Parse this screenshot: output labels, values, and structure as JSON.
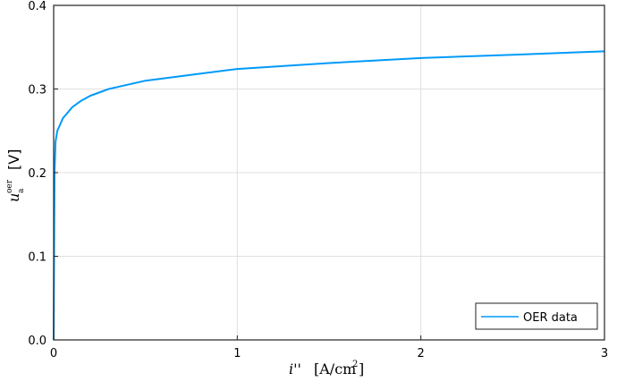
{
  "chart_data": {
    "type": "line",
    "title": "",
    "xlabel": "i'' [A/cm²]",
    "ylabel": "u_a^oer [V]",
    "xlim": [
      0,
      3
    ],
    "ylim": [
      0,
      0.4
    ],
    "xticks": [
      "0",
      "1",
      "2",
      "3"
    ],
    "yticks": [
      "0.0",
      "0.1",
      "0.2",
      "0.3",
      "0.4"
    ],
    "grid": true,
    "legend_position": "bottom-right",
    "series": [
      {
        "name": "OER data",
        "color": "#009AFA",
        "x": [
          0,
          0.005,
          0.01,
          0.02,
          0.03,
          0.05,
          0.07,
          0.1,
          0.15,
          0.2,
          0.3,
          0.5,
          0.75,
          1.0,
          1.5,
          2.0,
          2.5,
          3.0
        ],
        "y": [
          0,
          0.2,
          0.237,
          0.25,
          0.255,
          0.265,
          0.27,
          0.278,
          0.286,
          0.292,
          0.3,
          0.31,
          0.317,
          0.324,
          0.331,
          0.337,
          0.341,
          0.345
        ]
      }
    ]
  },
  "labels": {
    "legend": "OER data",
    "x_axis_var": "i''",
    "x_axis_unit": "[A/cm",
    "x_axis_sup": "2",
    "x_axis_close": "]",
    "y_axis_var": "u",
    "y_axis_sup": "oer",
    "y_axis_sub": "a",
    "y_axis_unit": "[V]"
  }
}
